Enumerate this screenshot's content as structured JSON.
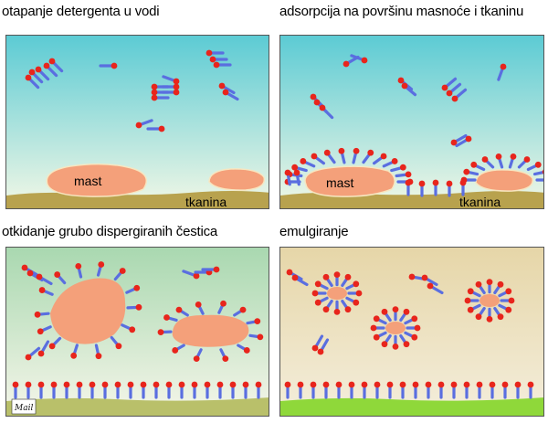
{
  "panels": [
    {
      "title": "otapanje detergenta u vodi",
      "labels": {
        "fat": "mast",
        "fabric": "tkanina"
      }
    },
    {
      "title": "adsorpcija na površinu masnoće i tkaninu",
      "labels": {
        "fat": "mast",
        "fabric": "tkanina"
      }
    },
    {
      "title": "otkidanje grubo dispergiranih čestica",
      "signature": "Mail"
    },
    {
      "title": "emulgiranje"
    }
  ],
  "colors": {
    "water_top": "#6ecfd6",
    "water_bottom": "#f2f7e0",
    "fat": "#f4a07a",
    "fabric": "#b8a24e",
    "fabric_green": "#9bd33a",
    "head": "#e8251c",
    "tail": "#5a6ee0"
  }
}
